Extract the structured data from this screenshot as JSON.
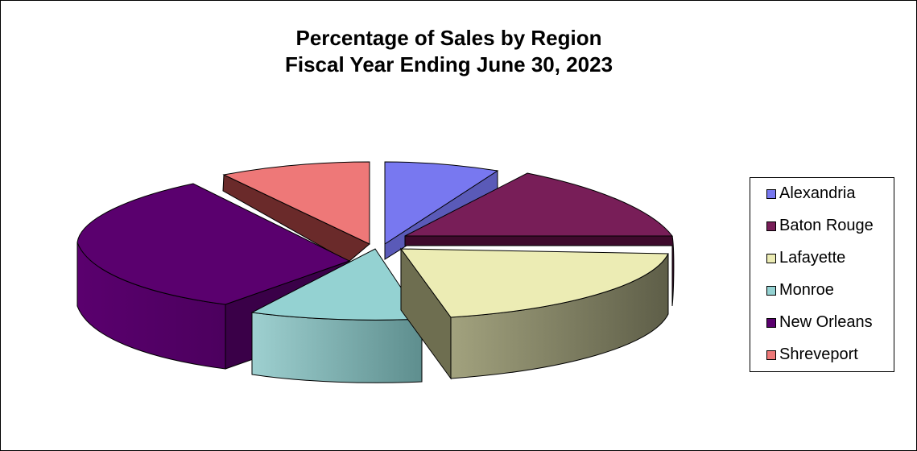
{
  "chart_data": {
    "type": "pie",
    "title": "Percentage of Sales by Region",
    "subtitle": "Fiscal Year Ending June 30, 2023",
    "categories": [
      "Alexandria",
      "Baton Rouge",
      "Lafayette",
      "Monroe",
      "New Orleans",
      "Shreveport"
    ],
    "values": [
      7,
      20,
      22,
      10,
      31,
      10
    ],
    "colors": [
      "#7878f0",
      "#781e58",
      "#ececb4",
      "#94d2d2",
      "#5a006e",
      "#ee7878"
    ],
    "exploded": true,
    "three_d": true,
    "legend_position": "right"
  }
}
